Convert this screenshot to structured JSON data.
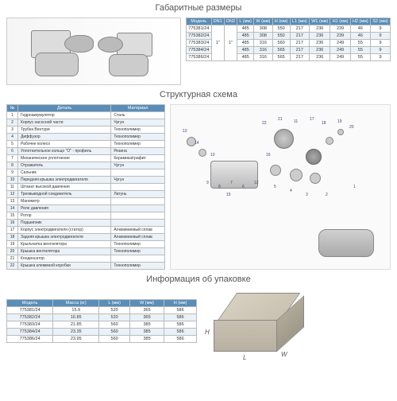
{
  "titles": {
    "dims": "Габаритные размеры",
    "struct": "Структурная схема",
    "pkg": "Информация об упаковке"
  },
  "dimsTable": {
    "headers": [
      "Модель",
      "DN1",
      "DN2",
      "L (мм)",
      "W (мм)",
      "H (мм)",
      "L1 (мм)",
      "W1 (мм)",
      "H1 (мм)",
      "H2 (мм)",
      "S2 (мм)"
    ],
    "rows": [
      [
        "775381/24",
        "1\"",
        "1\"",
        "485",
        "308",
        "550",
        "217",
        "236",
        "239",
        "46",
        "9"
      ],
      [
        "775382/24",
        "",
        "",
        "485",
        "308",
        "550",
        "217",
        "236",
        "239",
        "46",
        "9"
      ],
      [
        "775383/24",
        "",
        "",
        "485",
        "316",
        "560",
        "217",
        "236",
        "249",
        "55",
        "9"
      ],
      [
        "775384/24",
        "",
        "",
        "485",
        "316",
        "565",
        "217",
        "236",
        "249",
        "55",
        "9"
      ],
      [
        "775386/24",
        "",
        "",
        "485",
        "316",
        "565",
        "217",
        "236",
        "249",
        "55",
        "9"
      ]
    ]
  },
  "partsTable": {
    "headers": [
      "№",
      "Деталь",
      "Материал"
    ],
    "rows": [
      [
        "1",
        "Гидроаккумулятор",
        "Сталь"
      ],
      [
        "2",
        "Корпус насосной части",
        "Чугун"
      ],
      [
        "3",
        "Трубка Вентури",
        "Технополимер"
      ],
      [
        "4",
        "Диффузор",
        "Технополимер"
      ],
      [
        "5",
        "Рабочее колесо",
        "Технополимер"
      ],
      [
        "6",
        "Уплотнительное кольцо \"O\" - профиль",
        "Резина"
      ],
      [
        "7",
        "Механическое уплотнение",
        "Керамика/графит"
      ],
      [
        "8",
        "Отражатель",
        "Чугун"
      ],
      [
        "9",
        "Сальник",
        ""
      ],
      [
        "10",
        "Передняя крышка электродвигателя",
        "Чугун"
      ],
      [
        "11",
        "Штанат высокой давления",
        ""
      ],
      [
        "12",
        "Трехвыводной соединитель",
        "Латунь"
      ],
      [
        "13",
        "Манометр",
        ""
      ],
      [
        "14",
        "Реле давления",
        ""
      ],
      [
        "15",
        "Ротор",
        ""
      ],
      [
        "16",
        "Подшипник",
        ""
      ],
      [
        "17",
        "Корпус электродвигателя (статор)",
        "Алюминиевый сплав"
      ],
      [
        "18",
        "Задняя крышка электродвигателя",
        "Алюминиевый сплав"
      ],
      [
        "19",
        "Крыльчатка вентилятора",
        "Технополимер"
      ],
      [
        "20",
        "Крышка вентилятора",
        "Технополимер"
      ],
      [
        "21",
        "Конденсатор",
        ""
      ],
      [
        "22",
        "Крышка клеммной коробки",
        "Технополимер"
      ]
    ]
  },
  "pkgTable": {
    "headers": [
      "Модель",
      "Масса (кг)",
      "L (мм)",
      "W (мм)",
      "H (мм)"
    ],
    "rows": [
      [
        "775381/24",
        "15.9",
        "520",
        "365",
        "586"
      ],
      [
        "775382/24",
        "16.85",
        "520",
        "365",
        "586"
      ],
      [
        "775383/24",
        "21.85",
        "560",
        "385",
        "586"
      ],
      [
        "775384/24",
        "23.35",
        "560",
        "385",
        "586"
      ],
      [
        "775386/24",
        "23.95",
        "560",
        "385",
        "586"
      ]
    ]
  },
  "box": {
    "H": "H",
    "W": "W",
    "L": "L"
  },
  "colors": {
    "header_bg": "#5a8db8",
    "zebra": "#eaf1f7"
  }
}
